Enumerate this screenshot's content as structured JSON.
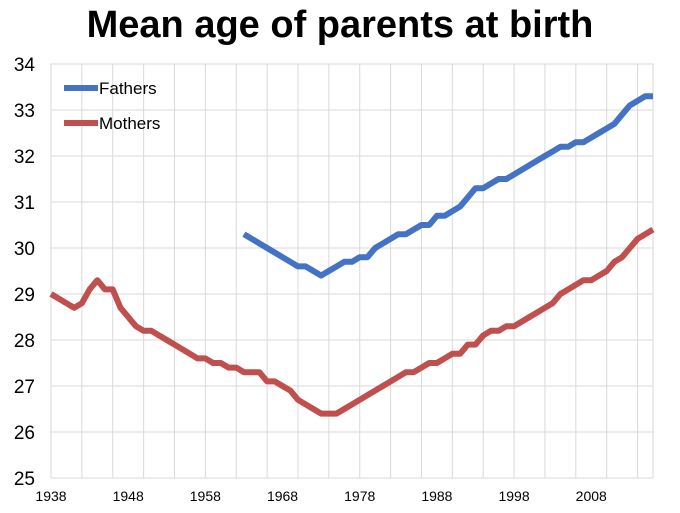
{
  "chart_data": {
    "type": "line",
    "title": "Mean age of parents at birth",
    "xlabel": "",
    "ylabel": "",
    "xlim": [
      1938,
      2016
    ],
    "ylim": [
      25,
      34
    ],
    "y_ticks": [
      25,
      26,
      27,
      28,
      29,
      30,
      31,
      32,
      33,
      34
    ],
    "x_ticks": [
      1938,
      1948,
      1958,
      1968,
      1978,
      1988,
      1998,
      2008
    ],
    "grid": true,
    "legend_position": "top-left",
    "series": [
      {
        "name": "Fathers",
        "color": "#4472C4",
        "x": [
          1963,
          1964,
          1965,
          1966,
          1967,
          1968,
          1969,
          1970,
          1971,
          1972,
          1973,
          1974,
          1975,
          1976,
          1977,
          1978,
          1979,
          1980,
          1981,
          1982,
          1983,
          1984,
          1985,
          1986,
          1987,
          1988,
          1989,
          1990,
          1991,
          1992,
          1993,
          1994,
          1995,
          1996,
          1997,
          1998,
          1999,
          2000,
          2001,
          2002,
          2003,
          2004,
          2005,
          2006,
          2007,
          2008,
          2009,
          2010,
          2011,
          2012,
          2013,
          2014,
          2015,
          2016
        ],
        "y": [
          30.3,
          30.2,
          30.1,
          30.0,
          29.9,
          29.8,
          29.7,
          29.6,
          29.6,
          29.5,
          29.4,
          29.5,
          29.6,
          29.7,
          29.7,
          29.8,
          29.8,
          30.0,
          30.1,
          30.2,
          30.3,
          30.3,
          30.4,
          30.5,
          30.5,
          30.7,
          30.7,
          30.8,
          30.9,
          31.1,
          31.3,
          31.3,
          31.4,
          31.5,
          31.5,
          31.6,
          31.7,
          31.8,
          31.9,
          32.0,
          32.1,
          32.2,
          32.2,
          32.3,
          32.3,
          32.4,
          32.5,
          32.6,
          32.7,
          32.9,
          33.1,
          33.2,
          33.3,
          33.3
        ]
      },
      {
        "name": "Mothers",
        "color": "#C0504D",
        "x": [
          1938,
          1939,
          1940,
          1941,
          1942,
          1943,
          1944,
          1945,
          1946,
          1947,
          1948,
          1949,
          1950,
          1951,
          1952,
          1953,
          1954,
          1955,
          1956,
          1957,
          1958,
          1959,
          1960,
          1961,
          1962,
          1963,
          1964,
          1965,
          1966,
          1967,
          1968,
          1969,
          1970,
          1971,
          1972,
          1973,
          1974,
          1975,
          1976,
          1977,
          1978,
          1979,
          1980,
          1981,
          1982,
          1983,
          1984,
          1985,
          1986,
          1987,
          1988,
          1989,
          1990,
          1991,
          1992,
          1993,
          1994,
          1995,
          1996,
          1997,
          1998,
          1999,
          2000,
          2001,
          2002,
          2003,
          2004,
          2005,
          2006,
          2007,
          2008,
          2009,
          2010,
          2011,
          2012,
          2013,
          2014,
          2015,
          2016
        ],
        "y": [
          29.0,
          28.9,
          28.8,
          28.7,
          28.8,
          29.1,
          29.3,
          29.1,
          29.1,
          28.7,
          28.5,
          28.3,
          28.2,
          28.2,
          28.1,
          28.0,
          27.9,
          27.8,
          27.7,
          27.6,
          27.6,
          27.5,
          27.5,
          27.4,
          27.4,
          27.3,
          27.3,
          27.3,
          27.1,
          27.1,
          27.0,
          26.9,
          26.7,
          26.6,
          26.5,
          26.4,
          26.4,
          26.4,
          26.5,
          26.6,
          26.7,
          26.8,
          26.9,
          27.0,
          27.1,
          27.2,
          27.3,
          27.3,
          27.4,
          27.5,
          27.5,
          27.6,
          27.7,
          27.7,
          27.9,
          27.9,
          28.1,
          28.2,
          28.2,
          28.3,
          28.3,
          28.4,
          28.5,
          28.6,
          28.7,
          28.8,
          29.0,
          29.1,
          29.2,
          29.3,
          29.3,
          29.4,
          29.5,
          29.7,
          29.8,
          30.0,
          30.2,
          30.3,
          30.4
        ]
      }
    ]
  }
}
